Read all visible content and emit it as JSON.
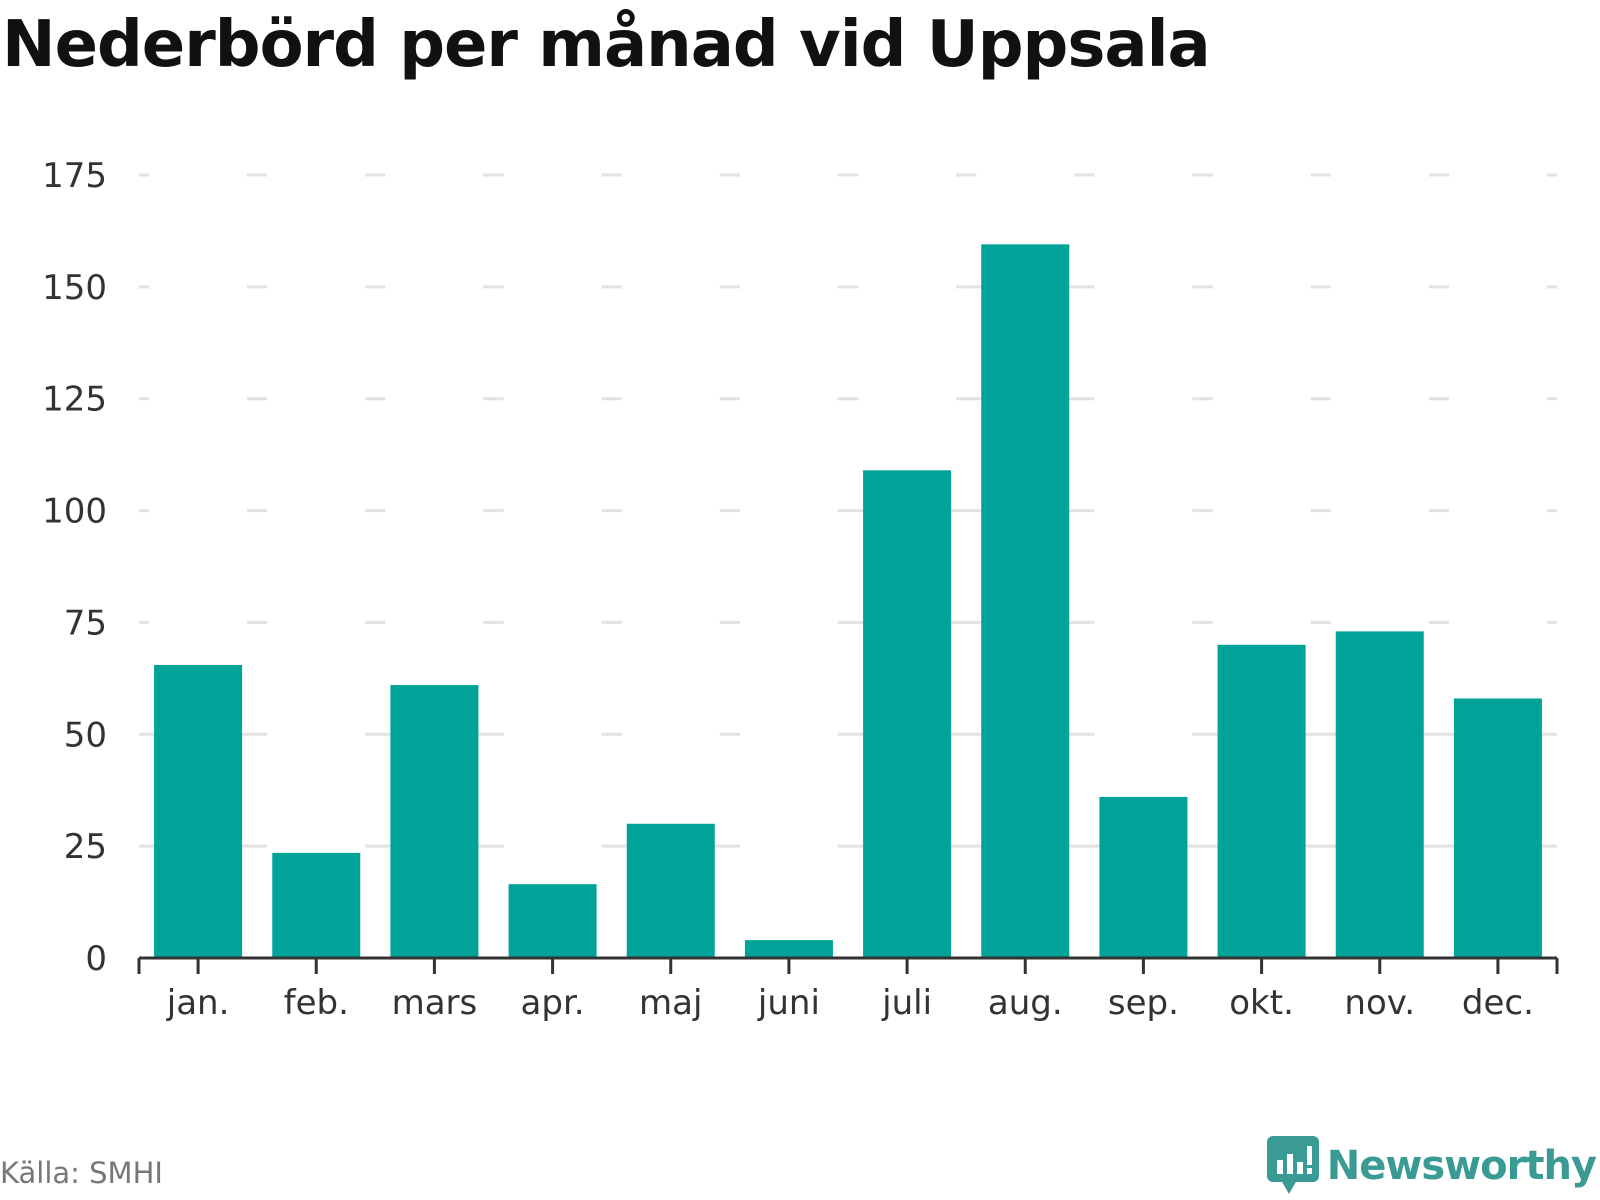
{
  "title": "Nederbörd per månad vid Uppsala",
  "source": "Källa: SMHI",
  "brand": {
    "name": "Newsworthy",
    "icon": "newsworthy-logo-icon",
    "color": "#3a9a94"
  },
  "colors": {
    "bar": "#00a398",
    "grid": "#e2e2e2",
    "axis": "#333333"
  },
  "chart_data": {
    "type": "bar",
    "title": "Nederbörd per månad vid Uppsala",
    "xlabel": "",
    "ylabel": "",
    "categories": [
      "jan.",
      "feb.",
      "mars",
      "apr.",
      "maj",
      "juni",
      "juli",
      "aug.",
      "sep.",
      "okt.",
      "nov.",
      "dec."
    ],
    "values": [
      65.5,
      23.5,
      61,
      16.5,
      30,
      4,
      109,
      159.5,
      36,
      70,
      73,
      58
    ],
    "ylim": [
      0,
      175
    ],
    "yticks": [
      0,
      25,
      50,
      75,
      100,
      125,
      150,
      175
    ],
    "grid": true,
    "legend": "none"
  }
}
